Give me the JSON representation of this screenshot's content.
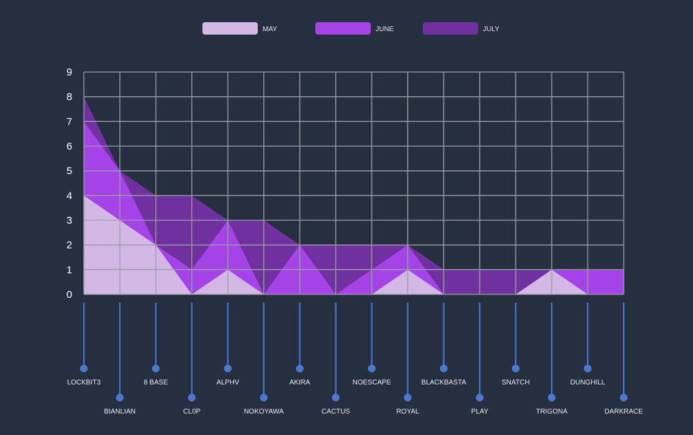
{
  "chart_data": {
    "type": "area",
    "categories": [
      "LOCKBIT3",
      "BIANLIAN",
      "8 BASE",
      "CL0P",
      "ALPHV",
      "NOKOYAWA",
      "AKIRA",
      "CACTUS",
      "NOESCAPE",
      "ROYAL",
      "BLACKBASTA",
      "PLAY",
      "SNATCH",
      "TRIGONA",
      "DUNGHILL",
      "DARKRACE"
    ],
    "series": [
      {
        "name": "MAY",
        "color": "#d3b8e6",
        "values": [
          4,
          3,
          2,
          0,
          1,
          0,
          0,
          0,
          0,
          1,
          0,
          0,
          0,
          1,
          0,
          0
        ]
      },
      {
        "name": "JUNE",
        "color": "#a542e8",
        "values": [
          7,
          5,
          2,
          1,
          3,
          0,
          2,
          0,
          1,
          2,
          0,
          0,
          0,
          1,
          1,
          1
        ]
      },
      {
        "name": "JULY",
        "color": "#7030a0",
        "values": [
          8,
          5,
          4,
          4,
          3,
          3,
          2,
          2,
          2,
          2,
          1,
          1,
          1,
          1,
          1,
          1
        ]
      }
    ],
    "y_ticks": [
      "0",
      "1",
      "2",
      "3",
      "4",
      "5",
      "6",
      "7",
      "8",
      "9"
    ],
    "ylim": [
      0,
      9
    ],
    "grid": true,
    "legend": "top-center",
    "category_marker_color": "#4a78d0",
    "grid_color": "#9a9ea6",
    "background": "#262f3f"
  }
}
